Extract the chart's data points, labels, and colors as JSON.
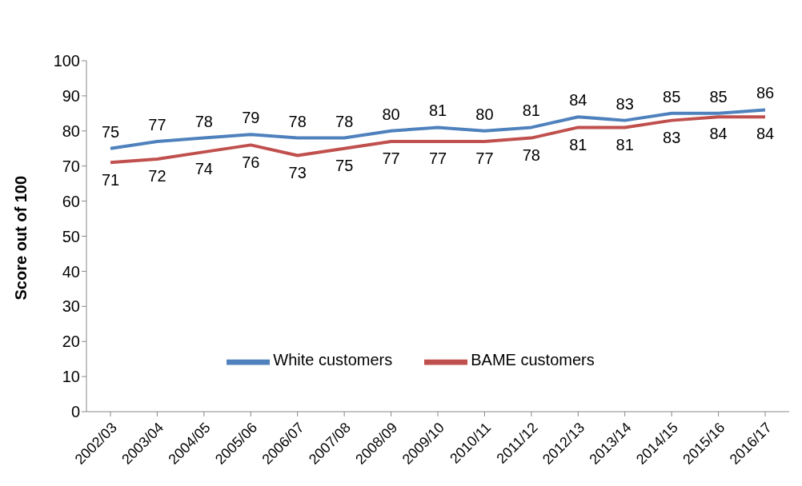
{
  "chart_data": {
    "type": "line",
    "ylabel": "Score out of 100",
    "categories": [
      "2002/03",
      "2003/04",
      "2004/05",
      "2005/06",
      "2006/07",
      "2007/08",
      "2008/09",
      "2009/10",
      "2010/11",
      "2011/12",
      "2012/13",
      "2013/14",
      "2014/15",
      "2015/16",
      "2016/17"
    ],
    "series": [
      {
        "name": "White customers",
        "color": "#4f81bd",
        "values": [
          75,
          77,
          78,
          79,
          78,
          78,
          80,
          81,
          80,
          81,
          84,
          83,
          85,
          85,
          86
        ]
      },
      {
        "name": "BAME customers",
        "color": "#c0504d",
        "values": [
          71,
          72,
          74,
          76,
          73,
          75,
          77,
          77,
          77,
          78,
          81,
          81,
          83,
          84,
          84
        ]
      }
    ],
    "ylim": [
      0,
      100
    ],
    "yticks": [
      0,
      10,
      20,
      30,
      40,
      50,
      60,
      70,
      80,
      90,
      100
    ],
    "grid": false,
    "legend": "bottom",
    "marker": "none",
    "line_style": "solid",
    "data_labels": true
  }
}
